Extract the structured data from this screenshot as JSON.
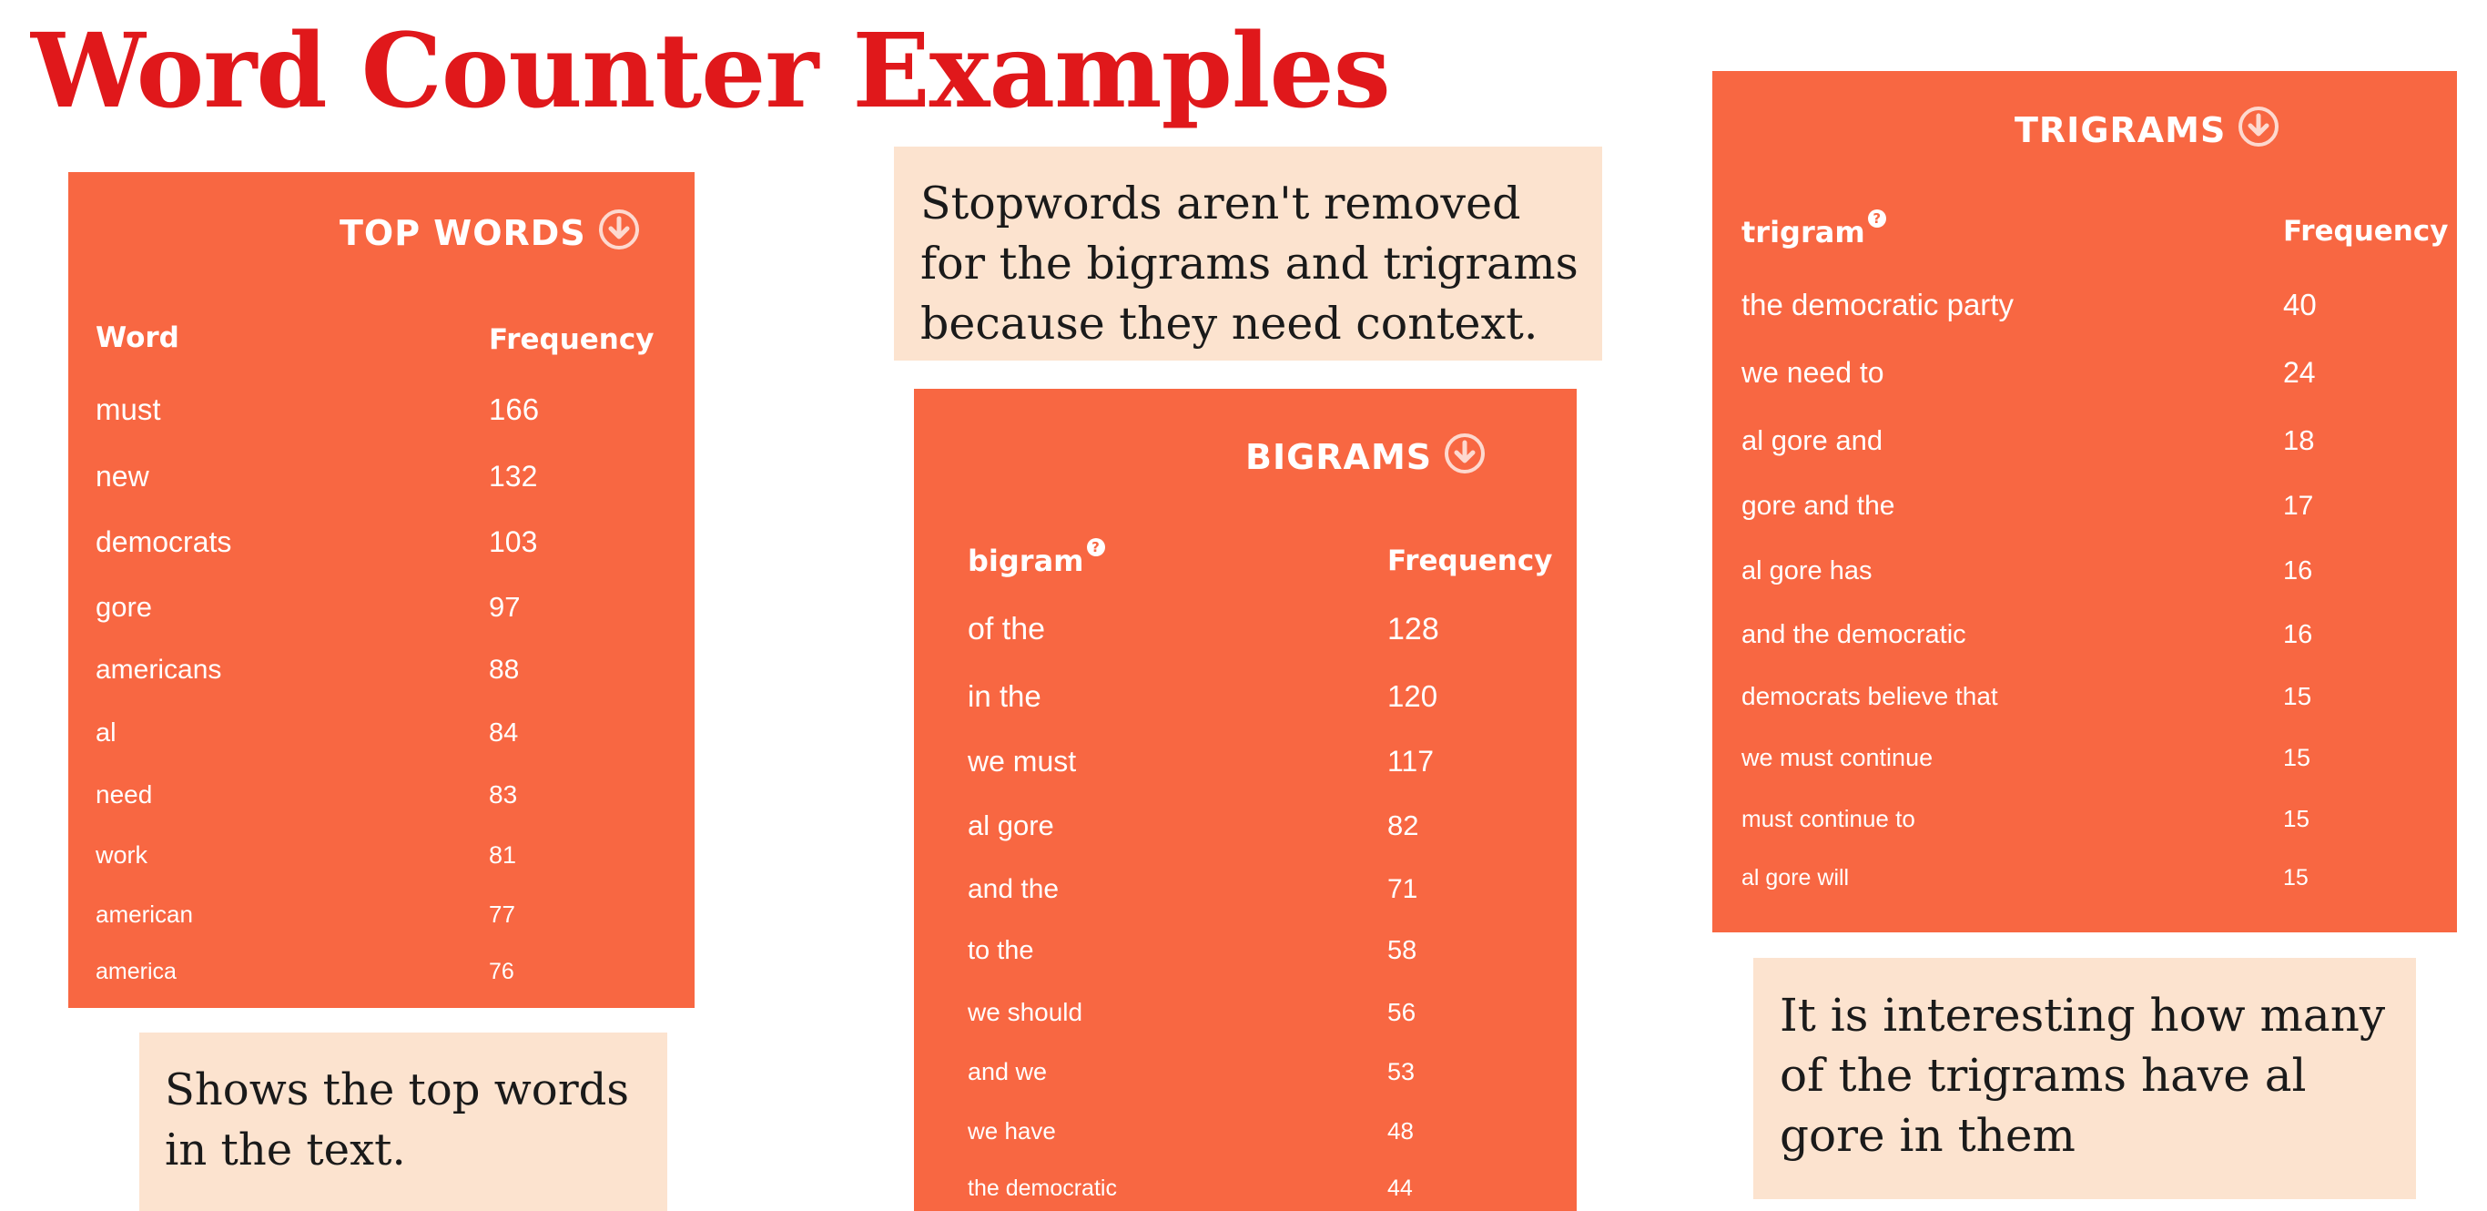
{
  "title": "Word Counter Examples",
  "colors": {
    "title": "#e0181b",
    "panel": "#f86742",
    "note_background": "#fce3cf",
    "text_on_panel": "#ffffff"
  },
  "top_words": {
    "heading": "TOP WORDS",
    "icon": "download-circle-icon",
    "col_word": "Word",
    "col_freq": "Frequency",
    "rows": [
      {
        "term": "must",
        "freq": "166"
      },
      {
        "term": "new",
        "freq": "132"
      },
      {
        "term": "democrats",
        "freq": "103"
      },
      {
        "term": "gore",
        "freq": "97"
      },
      {
        "term": "americans",
        "freq": "88"
      },
      {
        "term": "al",
        "freq": "84"
      },
      {
        "term": "need",
        "freq": "83"
      },
      {
        "term": "work",
        "freq": "81"
      },
      {
        "term": "american",
        "freq": "77"
      },
      {
        "term": "america",
        "freq": "76"
      }
    ],
    "note": "Shows the top words in the text."
  },
  "bigrams": {
    "heading": "BIGRAMS",
    "icon": "download-circle-icon",
    "col_word": "bigram",
    "help_icon": "question-circle-icon",
    "col_freq": "Frequency",
    "rows": [
      {
        "term": "of the",
        "freq": "128"
      },
      {
        "term": "in the",
        "freq": "120"
      },
      {
        "term": "we must",
        "freq": "117"
      },
      {
        "term": "al gore",
        "freq": "82"
      },
      {
        "term": "and the",
        "freq": "71"
      },
      {
        "term": "to the",
        "freq": "58"
      },
      {
        "term": "we should",
        "freq": "56"
      },
      {
        "term": "and we",
        "freq": "53"
      },
      {
        "term": "we have",
        "freq": "48"
      },
      {
        "term": "the democratic",
        "freq": "44"
      }
    ],
    "note": "Stopwords aren't removed for the bigrams and trigrams because they need context."
  },
  "trigrams": {
    "heading": "TRIGRAMS",
    "icon": "download-circle-icon",
    "col_word": "trigram",
    "help_icon": "question-circle-icon",
    "col_freq": "Frequency",
    "rows": [
      {
        "term": "the democratic party",
        "freq": "40"
      },
      {
        "term": "we need to",
        "freq": "24"
      },
      {
        "term": "al gore and",
        "freq": "18"
      },
      {
        "term": "gore and the",
        "freq": "17"
      },
      {
        "term": "al gore has",
        "freq": "16"
      },
      {
        "term": "and the democratic",
        "freq": "16"
      },
      {
        "term": "democrats believe that",
        "freq": "15"
      },
      {
        "term": "we must continue",
        "freq": "15"
      },
      {
        "term": "must continue to",
        "freq": "15"
      },
      {
        "term": "al gore will",
        "freq": "15"
      }
    ],
    "note": "It is interesting how many of the trigrams have al gore in them"
  }
}
